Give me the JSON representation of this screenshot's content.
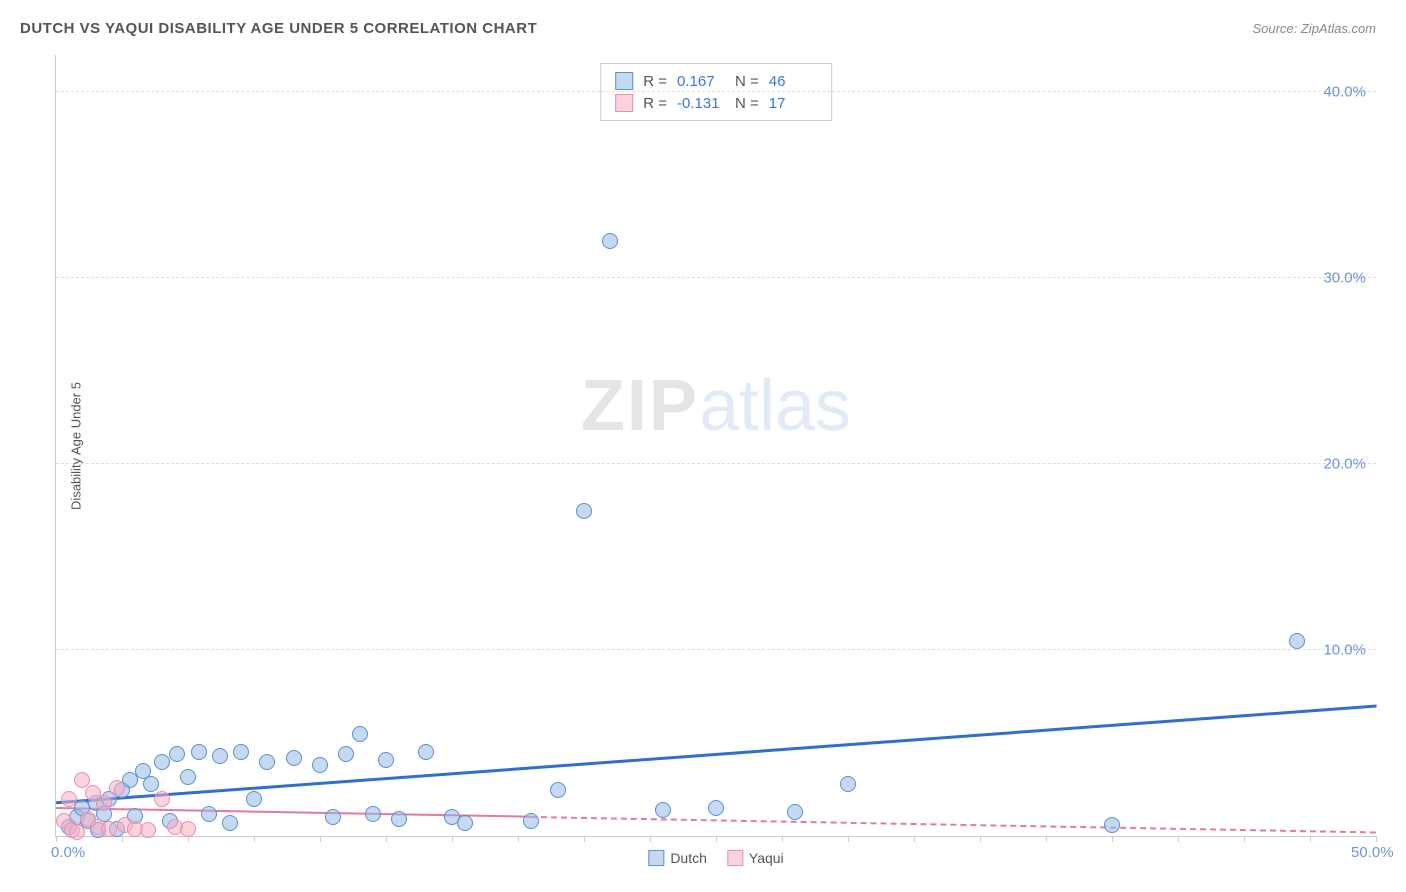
{
  "header": {
    "title": "DUTCH VS YAQUI DISABILITY AGE UNDER 5 CORRELATION CHART",
    "source": "Source: ZipAtlas.com"
  },
  "ylabel": "Disability Age Under 5",
  "watermark": {
    "part1": "ZIP",
    "part2": "atlas"
  },
  "chart": {
    "type": "scatter",
    "background_color": "#ffffff",
    "grid_color": "#dddddd",
    "axis_color": "#cccccc",
    "xlim": [
      0,
      50
    ],
    "ylim": [
      0,
      42
    ],
    "xtick_positions": [
      0,
      2.5,
      5,
      7.5,
      10,
      12.5,
      15,
      17.5,
      20,
      22.5,
      25,
      27.5,
      30,
      32.5,
      35,
      37.5,
      40,
      42.5,
      45,
      47.5,
      50
    ],
    "xtick_labels": {
      "0": "0.0%",
      "50": "50.0%"
    },
    "ytick_positions": [
      10,
      20,
      30,
      40
    ],
    "ytick_labels": {
      "10": "10.0%",
      "20": "20.0%",
      "30": "30.0%",
      "40": "40.0%"
    },
    "label_fontsize": 15,
    "label_color": "#6b95d8",
    "point_radius": 8,
    "point_stroke_width": 1
  },
  "series": {
    "dutch": {
      "label": "Dutch",
      "fill_color": "rgba(150,185,230,0.55)",
      "stroke_color": "#5c8fd6",
      "trend": {
        "x1": 0,
        "y1": 1.8,
        "x2": 50,
        "y2": 7.0,
        "color": "#2f6fd0",
        "width": 2.5,
        "solid_to_x": 50
      },
      "points": [
        [
          0.5,
          0.5
        ],
        [
          0.8,
          1.0
        ],
        [
          1.0,
          1.5
        ],
        [
          1.2,
          0.8
        ],
        [
          1.5,
          1.8
        ],
        [
          1.6,
          0.3
        ],
        [
          1.8,
          1.2
        ],
        [
          2.0,
          2.0
        ],
        [
          2.3,
          0.4
        ],
        [
          2.5,
          2.5
        ],
        [
          2.8,
          3.0
        ],
        [
          3.0,
          1.1
        ],
        [
          3.3,
          3.5
        ],
        [
          3.6,
          2.8
        ],
        [
          4.0,
          4.0
        ],
        [
          4.3,
          0.8
        ],
        [
          4.6,
          4.4
        ],
        [
          5.0,
          3.2
        ],
        [
          5.4,
          4.5
        ],
        [
          5.8,
          1.2
        ],
        [
          6.2,
          4.3
        ],
        [
          6.6,
          0.7
        ],
        [
          7.0,
          4.5
        ],
        [
          7.5,
          2.0
        ],
        [
          8.0,
          4.0
        ],
        [
          9.0,
          4.2
        ],
        [
          10.0,
          3.8
        ],
        [
          10.5,
          1.0
        ],
        [
          11.0,
          4.4
        ],
        [
          11.5,
          5.5
        ],
        [
          12.0,
          1.2
        ],
        [
          12.5,
          4.1
        ],
        [
          13.0,
          0.9
        ],
        [
          14.0,
          4.5
        ],
        [
          15.0,
          1.0
        ],
        [
          15.5,
          0.7
        ],
        [
          18.0,
          0.8
        ],
        [
          19.0,
          2.5
        ],
        [
          20.0,
          17.5
        ],
        [
          21.0,
          32.0
        ],
        [
          23.0,
          1.4
        ],
        [
          25.0,
          1.5
        ],
        [
          28.0,
          1.3
        ],
        [
          30.0,
          2.8
        ],
        [
          40.0,
          0.6
        ],
        [
          47.0,
          10.5
        ]
      ]
    },
    "yaqui": {
      "label": "Yaqui",
      "fill_color": "rgba(245,175,195,0.55)",
      "stroke_color": "#e98fb0",
      "trend": {
        "x1": 0,
        "y1": 1.5,
        "x2": 50,
        "y2": 0.2,
        "color": "#e47aa0",
        "width": 2,
        "solid_to_x": 18
      },
      "points": [
        [
          0.3,
          0.8
        ],
        [
          0.5,
          2.0
        ],
        [
          0.6,
          0.3
        ],
        [
          0.8,
          0.2
        ],
        [
          1.0,
          3.0
        ],
        [
          1.2,
          0.9
        ],
        [
          1.4,
          2.3
        ],
        [
          1.6,
          0.5
        ],
        [
          1.8,
          1.8
        ],
        [
          2.0,
          0.4
        ],
        [
          2.3,
          2.6
        ],
        [
          2.6,
          0.6
        ],
        [
          3.0,
          0.4
        ],
        [
          3.5,
          0.3
        ],
        [
          4.0,
          2.0
        ],
        [
          4.5,
          0.5
        ],
        [
          5.0,
          0.4
        ]
      ]
    }
  },
  "stats": {
    "rows": [
      {
        "swatch_fill": "rgba(150,185,230,0.55)",
        "swatch_stroke": "#5c8fd6",
        "r_label": "R =",
        "r_value": "0.167",
        "n_label": "N =",
        "n_value": "46"
      },
      {
        "swatch_fill": "rgba(245,175,195,0.55)",
        "swatch_stroke": "#e98fb0",
        "r_label": "R =",
        "r_value": "-0.131",
        "n_label": "N =",
        "n_value": "17"
      }
    ]
  },
  "legend": {
    "items": [
      {
        "label": "Dutch",
        "fill": "rgba(150,185,230,0.55)",
        "stroke": "#5c8fd6"
      },
      {
        "label": "Yaqui",
        "fill": "rgba(245,175,195,0.55)",
        "stroke": "#e98fb0"
      }
    ]
  }
}
